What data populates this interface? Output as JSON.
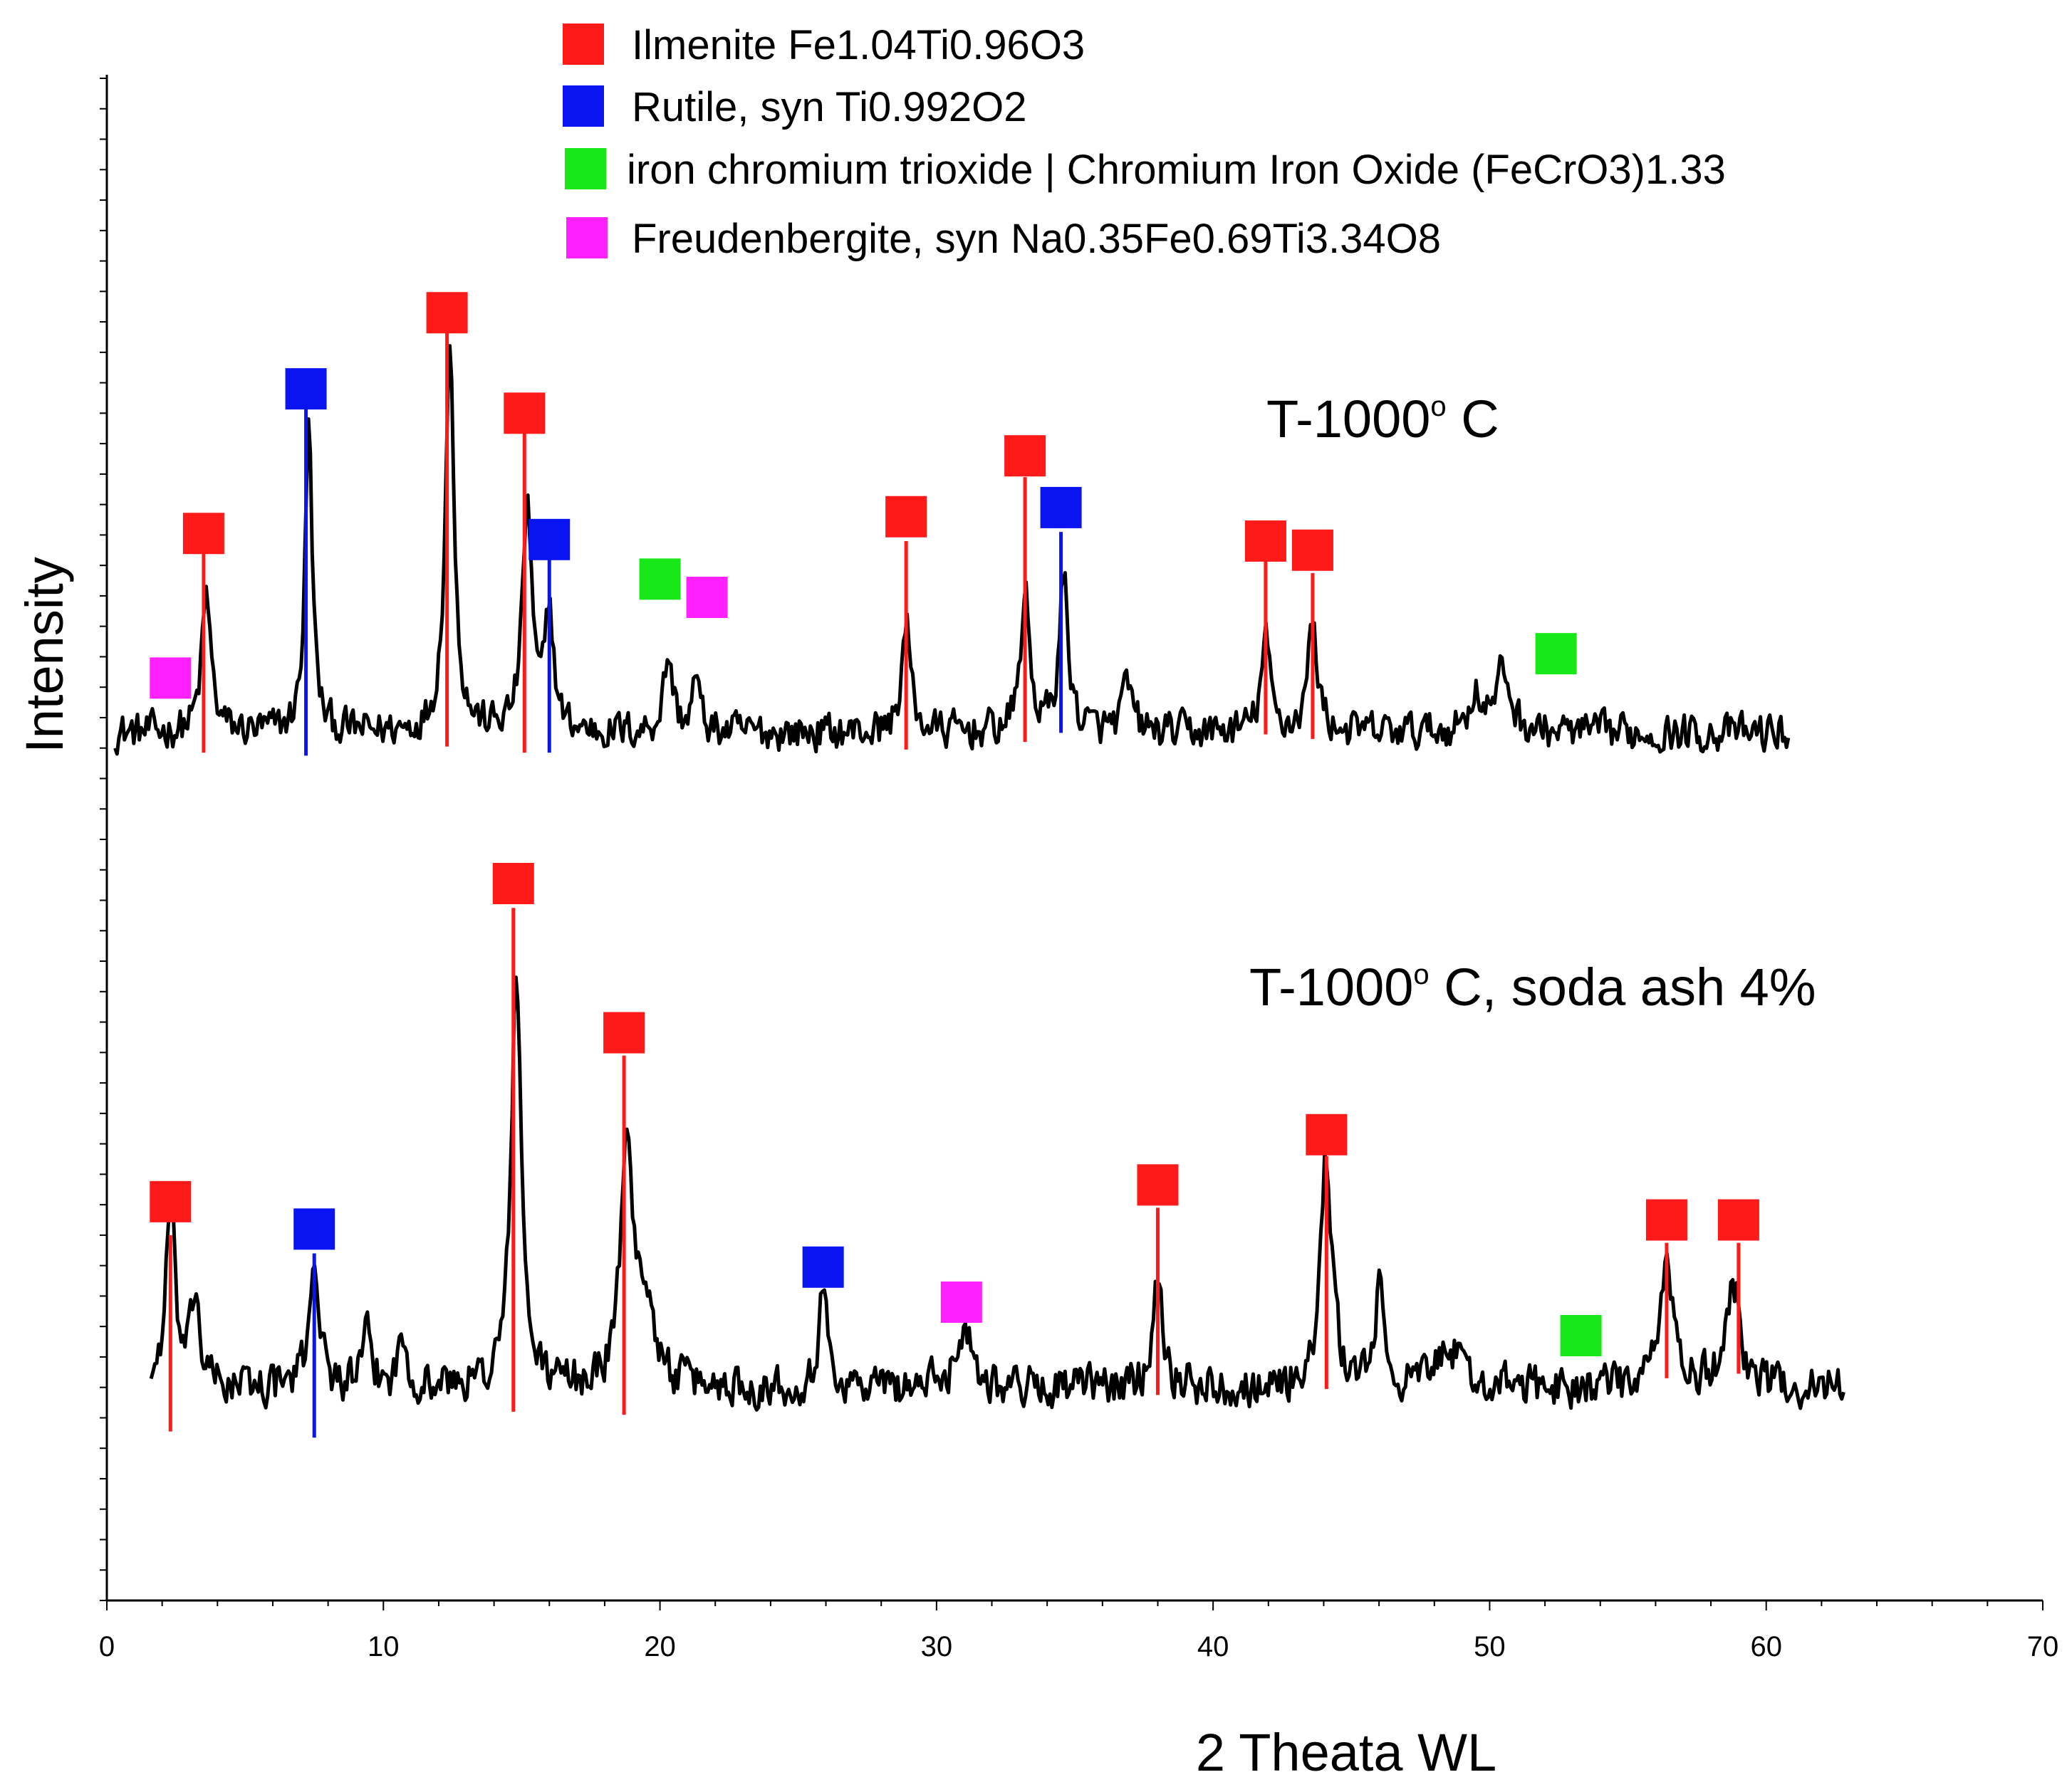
{
  "chart_data": {
    "type": "line",
    "title": "",
    "xlabel": "2 Theata WL",
    "ylabel": "Intensity",
    "xlim": [
      0,
      70
    ],
    "ylim": [
      0,
      100
    ],
    "xticks": [
      "0",
      "10",
      "20",
      "30",
      "40",
      "50",
      "60",
      "70"
    ],
    "grid": false,
    "legend_position": "top",
    "colors": {
      "ilmenite": "#ff1a1a",
      "rutile": "#0a14f0",
      "chromium": "#18e818",
      "freudenbergite": "#ff20ff",
      "trace": "#000000"
    },
    "legend": [
      {
        "phase": "ilmenite",
        "label": "Ilmenite Fe1.04Ti0.96O3"
      },
      {
        "phase": "rutile",
        "label": "Rutile, syn Ti0.992O2"
      },
      {
        "phase": "chromium",
        "label": "iron chromium trioxide | Chromium Iron Oxide (FeCrO3)1.33"
      },
      {
        "phase": "freudenbergite",
        "label": "Freudenbergite, syn Na0.35Fe0.69Ti3.34O8"
      }
    ],
    "series": [
      {
        "name": "T-1000° C",
        "label_main": "T-1000",
        "label_sup": "o",
        "label_tail": " C",
        "x_range": [
          0.3,
          60.8
        ],
        "baseline": 57,
        "noise": 1.7,
        "peaks": [
          {
            "x": 3.6,
            "h": 9,
            "w": 0.2
          },
          {
            "x": 7.3,
            "h": 20,
            "w": 0.16
          },
          {
            "x": 12.4,
            "h": 25,
            "w": 0.2
          },
          {
            "x": 15.2,
            "h": 15,
            "w": 0.2
          },
          {
            "x": 16.0,
            "h": 8,
            "w": 0.18
          },
          {
            "x": 20.3,
            "h": 5,
            "w": 0.2
          },
          {
            "x": 21.3,
            "h": 3.5,
            "w": 0.16
          },
          {
            "x": 28.9,
            "h": 7,
            "w": 0.2
          },
          {
            "x": 33.2,
            "h": 9,
            "w": 0.2
          },
          {
            "x": 34.6,
            "h": 10,
            "w": 0.2
          },
          {
            "x": 36.9,
            "h": 3,
            "w": 0.22
          },
          {
            "x": 41.9,
            "h": 6,
            "w": 0.2
          },
          {
            "x": 43.6,
            "h": 7,
            "w": 0.22
          },
          {
            "x": 49.5,
            "h": 2.5,
            "w": 0.3
          },
          {
            "x": 50.5,
            "h": 4,
            "w": 0.3
          }
        ],
        "markers": [
          {
            "x": 2.3,
            "phase": "freudenbergite",
            "y": 60.6,
            "line": false
          },
          {
            "x": 3.5,
            "phase": "ilmenite",
            "y": 70.1,
            "line": true,
            "line_top": 68.9,
            "line_bottom": 55.7
          },
          {
            "x": 7.2,
            "phase": "rutile",
            "y": 79.6,
            "line": true,
            "line_top": 78.4,
            "line_bottom": 55.5
          },
          {
            "x": 12.3,
            "phase": "ilmenite",
            "y": 84.6,
            "line": true,
            "line_top": 83.5,
            "line_bottom": 56.1
          },
          {
            "x": 15.1,
            "phase": "ilmenite",
            "y": 78.0,
            "line": true,
            "line_top": 76.9,
            "line_bottom": 55.7
          },
          {
            "x": 16.0,
            "phase": "rutile",
            "y": 69.7,
            "line": true,
            "line_top": 68.5,
            "line_bottom": 55.7
          },
          {
            "x": 20.0,
            "phase": "chromium",
            "y": 67.1,
            "line": false
          },
          {
            "x": 21.7,
            "phase": "freudenbergite",
            "y": 65.9,
            "line": false
          },
          {
            "x": 28.9,
            "phase": "ilmenite",
            "y": 71.2,
            "line": true,
            "line_top": 69.6,
            "line_bottom": 55.9
          },
          {
            "x": 33.2,
            "phase": "ilmenite",
            "y": 75.2,
            "line": true,
            "line_top": 73.8,
            "line_bottom": 56.4
          },
          {
            "x": 34.5,
            "phase": "rutile",
            "y": 71.8,
            "line": true,
            "line_top": 70.2,
            "line_bottom": 57.0
          },
          {
            "x": 41.9,
            "phase": "ilmenite",
            "y": 69.6,
            "line": true,
            "line_top": 68.4,
            "line_bottom": 56.9
          },
          {
            "x": 43.6,
            "phase": "ilmenite",
            "y": 69.0,
            "line": true,
            "line_top": 67.5,
            "line_bottom": 56.6
          },
          {
            "x": 52.4,
            "phase": "chromium",
            "y": 62.2,
            "line": false
          }
        ]
      },
      {
        "name": "T-1000° C, soda ash 4%",
        "label_main": "T-1000",
        "label_sup": "o",
        "label_tail": " C, soda ash 4%",
        "x_range": [
          1.6,
          62.8
        ],
        "baseline": 14,
        "noise": 1.9,
        "peaks": [
          {
            "x": 2.3,
            "h": 12,
            "w": 0.2
          },
          {
            "x": 3.2,
            "h": 6,
            "w": 0.18
          },
          {
            "x": 7.5,
            "h": 9,
            "w": 0.2
          },
          {
            "x": 9.4,
            "h": 3,
            "w": 0.2
          },
          {
            "x": 10.7,
            "h": 3,
            "w": 0.2
          },
          {
            "x": 14.8,
            "h": 27,
            "w": 0.22
          },
          {
            "x": 18.8,
            "h": 17,
            "w": 0.25
          },
          {
            "x": 19.5,
            "h": 6,
            "w": 0.3
          },
          {
            "x": 25.9,
            "h": 6,
            "w": 0.2
          },
          {
            "x": 31.0,
            "h": 4,
            "w": 0.35
          },
          {
            "x": 38.0,
            "h": 8,
            "w": 0.2
          },
          {
            "x": 44.1,
            "h": 15,
            "w": 0.24
          },
          {
            "x": 46.0,
            "h": 6,
            "w": 0.2
          },
          {
            "x": 48.5,
            "h": 3,
            "w": 0.4
          },
          {
            "x": 56.4,
            "h": 9,
            "w": 0.25
          },
          {
            "x": 58.8,
            "h": 7,
            "w": 0.3
          }
        ],
        "markers": [
          {
            "x": 2.3,
            "phase": "ilmenite",
            "y": 26.2,
            "line": true,
            "line_top": 24.0,
            "line_bottom": 11.1
          },
          {
            "x": 7.5,
            "phase": "rutile",
            "y": 24.4,
            "line": true,
            "line_top": 22.8,
            "line_bottom": 10.7
          },
          {
            "x": 14.7,
            "phase": "ilmenite",
            "y": 47.1,
            "line": true,
            "line_top": 45.5,
            "line_bottom": 12.4
          },
          {
            "x": 18.7,
            "phase": "ilmenite",
            "y": 37.3,
            "line": true,
            "line_top": 35.8,
            "line_bottom": 12.2
          },
          {
            "x": 25.9,
            "phase": "rutile",
            "y": 21.9,
            "line": false
          },
          {
            "x": 30.9,
            "phase": "freudenbergite",
            "y": 19.6,
            "line": false
          },
          {
            "x": 38.0,
            "phase": "ilmenite",
            "y": 27.3,
            "line": true,
            "line_top": 25.8,
            "line_bottom": 13.5
          },
          {
            "x": 44.1,
            "phase": "ilmenite",
            "y": 30.6,
            "line": true,
            "line_top": 29.2,
            "line_bottom": 13.9
          },
          {
            "x": 53.3,
            "phase": "chromium",
            "y": 17.4,
            "line": false
          },
          {
            "x": 56.4,
            "phase": "ilmenite",
            "y": 25.0,
            "line": true,
            "line_top": 23.5,
            "line_bottom": 14.6
          },
          {
            "x": 59.0,
            "phase": "ilmenite",
            "y": 25.0,
            "line": true,
            "line_top": 23.5,
            "line_bottom": 14.9
          }
        ]
      }
    ]
  }
}
